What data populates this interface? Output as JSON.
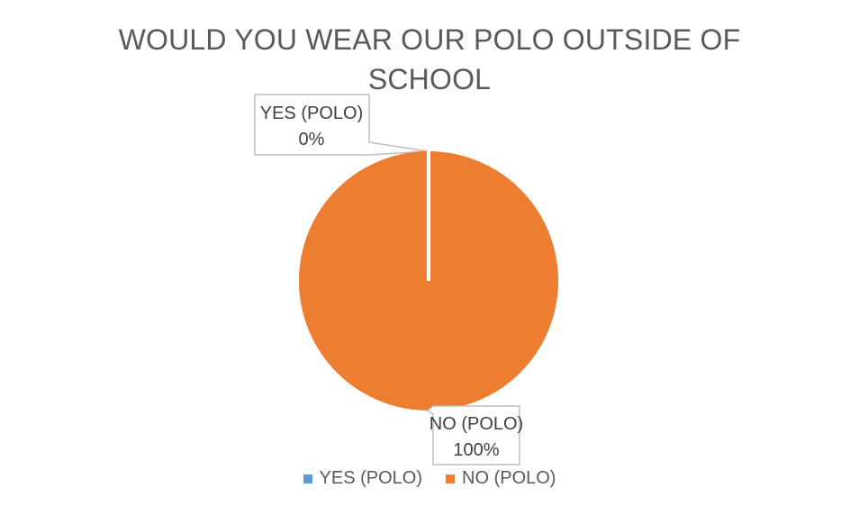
{
  "chart_data": {
    "type": "pie",
    "title": "WOULD YOU WEAR OUR POLO OUTSIDE OF SCHOOL",
    "categories": [
      "YES (POLO)",
      "NO (POLO)"
    ],
    "values": [
      0,
      100
    ],
    "data_labels": [
      {
        "category": "YES (POLO)",
        "percent": "0%"
      },
      {
        "category": "NO (POLO)",
        "percent": "100%"
      }
    ],
    "colors": [
      "#5B9BD5",
      "#ED7D31"
    ],
    "legend_position": "bottom"
  }
}
